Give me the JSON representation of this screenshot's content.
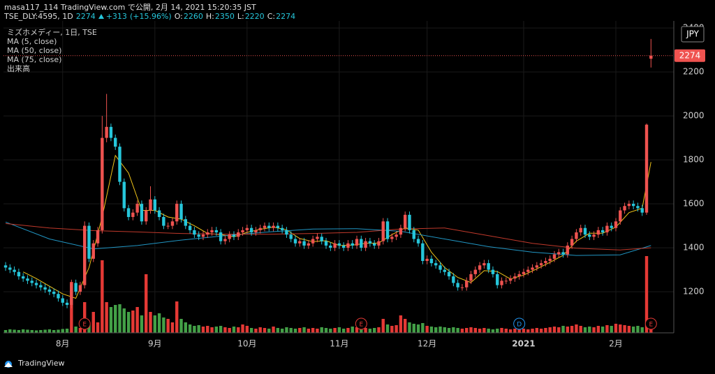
{
  "header": {
    "line1": "masa117_114 TradingView.com で公開, 2月 14, 2021 15:20:35 JST",
    "symbol": "TSE_DLY:4595, 1D",
    "change": {
      "value": 313,
      "label": "+313"
    },
    "change_pct": {
      "value": 15.96,
      "label": "(+15.96%)"
    },
    "o_label": "O:",
    "h_label": "H:",
    "l_label": "L:",
    "c_label": "C:"
  },
  "footer": {
    "brand": "TradingView"
  },
  "chart_data": {
    "type": "candlestick",
    "title": "ミズホメディー, 1日, TSE",
    "currency": "JPY",
    "volume_name": "出来高",
    "open": [
      1320,
      1310,
      1300,
      1290,
      1270,
      1260,
      1250,
      1240,
      1230,
      1220,
      1210,
      1200,
      1190,
      1170,
      1150,
      1140,
      1240,
      1200,
      1230,
      1500,
      1350,
      1420,
      1480,
      1900,
      1950,
      1900,
      1860,
      1700,
      1580,
      1540,
      1560,
      1600,
      1520,
      1570,
      1620,
      1570,
      1540,
      1500,
      1500,
      1520,
      1600,
      1530,
      1500,
      1480,
      1460,
      1450,
      1460,
      1470,
      1480,
      1470,
      1430,
      1440,
      1460,
      1450,
      1470,
      1480,
      1490,
      1470,
      1480,
      1490,
      1500,
      1490,
      1500,
      1490,
      1480,
      1460,
      1440,
      1420,
      1430,
      1410,
      1420,
      1440,
      1450,
      1430,
      1410,
      1400,
      1420,
      1410,
      1400,
      1420,
      1410,
      1440,
      1400,
      1430,
      1420,
      1410,
      1430,
      1520,
      1440,
      1450,
      1460,
      1490,
      1550,
      1480,
      1440,
      1420,
      1340,
      1350,
      1330,
      1320,
      1300,
      1290,
      1270,
      1240,
      1220,
      1220,
      1250,
      1280,
      1300,
      1320,
      1330,
      1300,
      1280,
      1230,
      1250,
      1250,
      1260,
      1270,
      1280,
      1290,
      1300,
      1310,
      1320,
      1330,
      1340,
      1350,
      1370,
      1380,
      1370,
      1410,
      1440,
      1470,
      1490,
      1460,
      1450,
      1460,
      1480,
      1470,
      1500,
      1490,
      1520,
      1570,
      1590,
      1600,
      1590,
      1580,
      1560,
      2260
    ],
    "high": [
      1335,
      1325,
      1315,
      1305,
      1285,
      1275,
      1265,
      1255,
      1245,
      1235,
      1225,
      1215,
      1205,
      1185,
      1165,
      1255,
      1255,
      1245,
      1520,
      1515,
      1435,
      1495,
      2000,
      2100,
      1965,
      1915,
      1875,
      1715,
      1595,
      1575,
      1615,
      1615,
      1585,
      1680,
      1635,
      1585,
      1555,
      1515,
      1535,
      1615,
      1615,
      1545,
      1515,
      1495,
      1475,
      1475,
      1485,
      1495,
      1495,
      1485,
      1455,
      1475,
      1475,
      1485,
      1495,
      1505,
      1505,
      1495,
      1505,
      1515,
      1515,
      1515,
      1515,
      1505,
      1495,
      1475,
      1455,
      1445,
      1445,
      1435,
      1455,
      1465,
      1465,
      1445,
      1425,
      1435,
      1435,
      1425,
      1435,
      1435,
      1455,
      1455,
      1445,
      1445,
      1435,
      1445,
      1535,
      1535,
      1465,
      1475,
      1505,
      1565,
      1565,
      1495,
      1455,
      1435,
      1365,
      1365,
      1345,
      1335,
      1315,
      1305,
      1285,
      1255,
      1235,
      1265,
      1295,
      1315,
      1335,
      1345,
      1345,
      1315,
      1295,
      1265,
      1265,
      1275,
      1285,
      1295,
      1305,
      1315,
      1325,
      1335,
      1345,
      1355,
      1365,
      1385,
      1395,
      1395,
      1425,
      1455,
      1485,
      1505,
      1505,
      1475,
      1475,
      1495,
      1495,
      1515,
      1515,
      1535,
      1585,
      1605,
      1615,
      1615,
      1605,
      1595,
      1965,
      2350
    ],
    "low": [
      1295,
      1285,
      1275,
      1255,
      1245,
      1235,
      1225,
      1215,
      1205,
      1195,
      1185,
      1175,
      1155,
      1135,
      1125,
      1125,
      1185,
      1185,
      1215,
      1335,
      1335,
      1405,
      1465,
      1880,
      1885,
      1845,
      1685,
      1565,
      1525,
      1525,
      1545,
      1505,
      1505,
      1555,
      1555,
      1525,
      1485,
      1485,
      1485,
      1505,
      1515,
      1485,
      1465,
      1445,
      1435,
      1435,
      1445,
      1455,
      1455,
      1415,
      1415,
      1425,
      1435,
      1435,
      1455,
      1465,
      1455,
      1455,
      1465,
      1475,
      1475,
      1475,
      1475,
      1465,
      1445,
      1425,
      1405,
      1405,
      1395,
      1395,
      1405,
      1425,
      1415,
      1395,
      1385,
      1385,
      1395,
      1385,
      1385,
      1395,
      1395,
      1385,
      1385,
      1405,
      1395,
      1395,
      1415,
      1425,
      1425,
      1435,
      1445,
      1475,
      1465,
      1425,
      1405,
      1325,
      1325,
      1315,
      1305,
      1285,
      1275,
      1255,
      1225,
      1205,
      1205,
      1205,
      1235,
      1265,
      1285,
      1305,
      1285,
      1265,
      1215,
      1215,
      1235,
      1235,
      1245,
      1255,
      1265,
      1275,
      1285,
      1295,
      1305,
      1315,
      1325,
      1335,
      1355,
      1355,
      1355,
      1395,
      1425,
      1455,
      1445,
      1435,
      1435,
      1445,
      1455,
      1455,
      1475,
      1475,
      1505,
      1555,
      1575,
      1575,
      1565,
      1545,
      1550,
      2220
    ],
    "close": [
      1310,
      1300,
      1290,
      1270,
      1260,
      1250,
      1240,
      1230,
      1220,
      1210,
      1200,
      1190,
      1170,
      1150,
      1140,
      1240,
      1200,
      1230,
      1500,
      1350,
      1420,
      1480,
      1900,
      1950,
      1900,
      1860,
      1700,
      1580,
      1540,
      1560,
      1600,
      1520,
      1570,
      1620,
      1570,
      1540,
      1500,
      1500,
      1520,
      1600,
      1530,
      1500,
      1480,
      1460,
      1450,
      1460,
      1470,
      1480,
      1470,
      1430,
      1440,
      1460,
      1450,
      1470,
      1480,
      1490,
      1470,
      1480,
      1490,
      1500,
      1490,
      1500,
      1490,
      1480,
      1460,
      1440,
      1420,
      1430,
      1410,
      1420,
      1440,
      1450,
      1430,
      1410,
      1400,
      1420,
      1410,
      1400,
      1420,
      1410,
      1440,
      1400,
      1430,
      1420,
      1410,
      1430,
      1520,
      1440,
      1450,
      1460,
      1490,
      1550,
      1480,
      1440,
      1420,
      1340,
      1350,
      1330,
      1320,
      1300,
      1290,
      1270,
      1240,
      1220,
      1220,
      1250,
      1280,
      1300,
      1320,
      1330,
      1300,
      1280,
      1230,
      1250,
      1250,
      1260,
      1270,
      1280,
      1290,
      1300,
      1310,
      1320,
      1330,
      1340,
      1350,
      1370,
      1380,
      1370,
      1410,
      1440,
      1470,
      1490,
      1460,
      1450,
      1460,
      1480,
      1470,
      1500,
      1490,
      1520,
      1570,
      1590,
      1600,
      1590,
      1580,
      1560,
      1960,
      2274
    ],
    "volume": [
      40,
      50,
      45,
      40,
      50,
      45,
      40,
      35,
      40,
      45,
      50,
      40,
      45,
      55,
      60,
      730,
      90,
      70,
      440,
      120,
      300,
      150,
      1040,
      440,
      370,
      400,
      410,
      350,
      300,
      320,
      370,
      250,
      840,
      300,
      250,
      280,
      220,
      200,
      150,
      450,
      200,
      150,
      120,
      100,
      110,
      90,
      100,
      80,
      90,
      100,
      80,
      70,
      90,
      80,
      120,
      100,
      70,
      60,
      80,
      70,
      60,
      90,
      70,
      60,
      80,
      70,
      60,
      70,
      80,
      60,
      70,
      60,
      80,
      70,
      60,
      70,
      80,
      60,
      70,
      90,
      80,
      60,
      70,
      60,
      70,
      80,
      200,
      120,
      100,
      110,
      250,
      200,
      150,
      130,
      120,
      140,
      100,
      90,
      80,
      90,
      80,
      70,
      80,
      70,
      60,
      70,
      80,
      70,
      60,
      70,
      60,
      50,
      60,
      70,
      60,
      50,
      60,
      70,
      60,
      50,
      60,
      70,
      60,
      70,
      80,
      90,
      80,
      100,
      90,
      100,
      120,
      100,
      80,
      90,
      80,
      100,
      90,
      110,
      100,
      130,
      120,
      110,
      100,
      90,
      100,
      80,
      1100,
      90
    ],
    "up_color": "#ef5350",
    "down_color": "#26c6da",
    "volume_up_color": "#e53935",
    "volume_down_color": "#43a047",
    "xlim": [
      -0.48,
      152.2
    ],
    "ylim": [
      1013,
      2432
    ],
    "volume_lim": [
      0,
      4470
    ],
    "yticks": [
      1200,
      1400,
      1600,
      1800,
      2000,
      2200,
      2400
    ],
    "xticks": [
      {
        "value": 13,
        "label": "8月"
      },
      {
        "value": 34,
        "label": "9月"
      },
      {
        "value": 55,
        "label": "10月"
      },
      {
        "value": 76,
        "label": "11月"
      },
      {
        "value": 96,
        "label": "12月"
      },
      {
        "value": 118,
        "label": "2021"
      },
      {
        "value": 139,
        "label": "2月"
      }
    ],
    "grid": true,
    "ma": [
      {
        "name": "MA (5, close)",
        "color": "#f0c419",
        "x": [
          4,
          7,
          10,
          13,
          16,
          19,
          22,
          25,
          28,
          31,
          34,
          37,
          40,
          43,
          46,
          49,
          52,
          55,
          58,
          61,
          64,
          67,
          70,
          73,
          76,
          79,
          82,
          85,
          88,
          91,
          94,
          97,
          100,
          103,
          106,
          109,
          112,
          115,
          118,
          121,
          124,
          127,
          130,
          133,
          136,
          139,
          142,
          145,
          147
        ],
        "values": [
          1290,
          1260,
          1225,
          1190,
          1170,
          1310,
          1540,
          1820,
          1740,
          1570,
          1570,
          1540,
          1530,
          1500,
          1465,
          1460,
          1450,
          1470,
          1484,
          1494,
          1482,
          1442,
          1428,
          1432,
          1410,
          1412,
          1420,
          1422,
          1460,
          1490,
          1480,
          1380,
          1310,
          1265,
          1242,
          1296,
          1292,
          1258,
          1276,
          1304,
          1334,
          1366,
          1430,
          1466,
          1466,
          1494,
          1560,
          1580,
          1790
        ]
      },
      {
        "name": "MA (50, close)",
        "color": "#2196c4",
        "x": [
          0,
          10,
          20,
          30,
          40,
          50,
          60,
          70,
          80,
          90,
          100,
          110,
          120,
          130,
          140,
          147
        ],
        "values": [
          1517,
          1440,
          1395,
          1410,
          1435,
          1455,
          1472,
          1485,
          1487,
          1475,
          1440,
          1405,
          1380,
          1365,
          1368,
          1410
        ]
      },
      {
        "name": "MA (75, close)",
        "color": "#c0392b",
        "x": [
          0,
          10,
          20,
          30,
          40,
          50,
          60,
          70,
          80,
          90,
          100,
          110,
          120,
          130,
          140,
          147
        ],
        "values": [
          1510,
          1490,
          1478,
          1472,
          1465,
          1462,
          1462,
          1465,
          1470,
          1485,
          1490,
          1455,
          1420,
          1398,
          1390,
          1400
        ]
      }
    ],
    "events": [
      {
        "label": "E",
        "x": 18
      },
      {
        "label": "E",
        "x": 81
      },
      {
        "label": "D",
        "x": 117
      },
      {
        "label": "E",
        "x": 147
      }
    ]
  }
}
